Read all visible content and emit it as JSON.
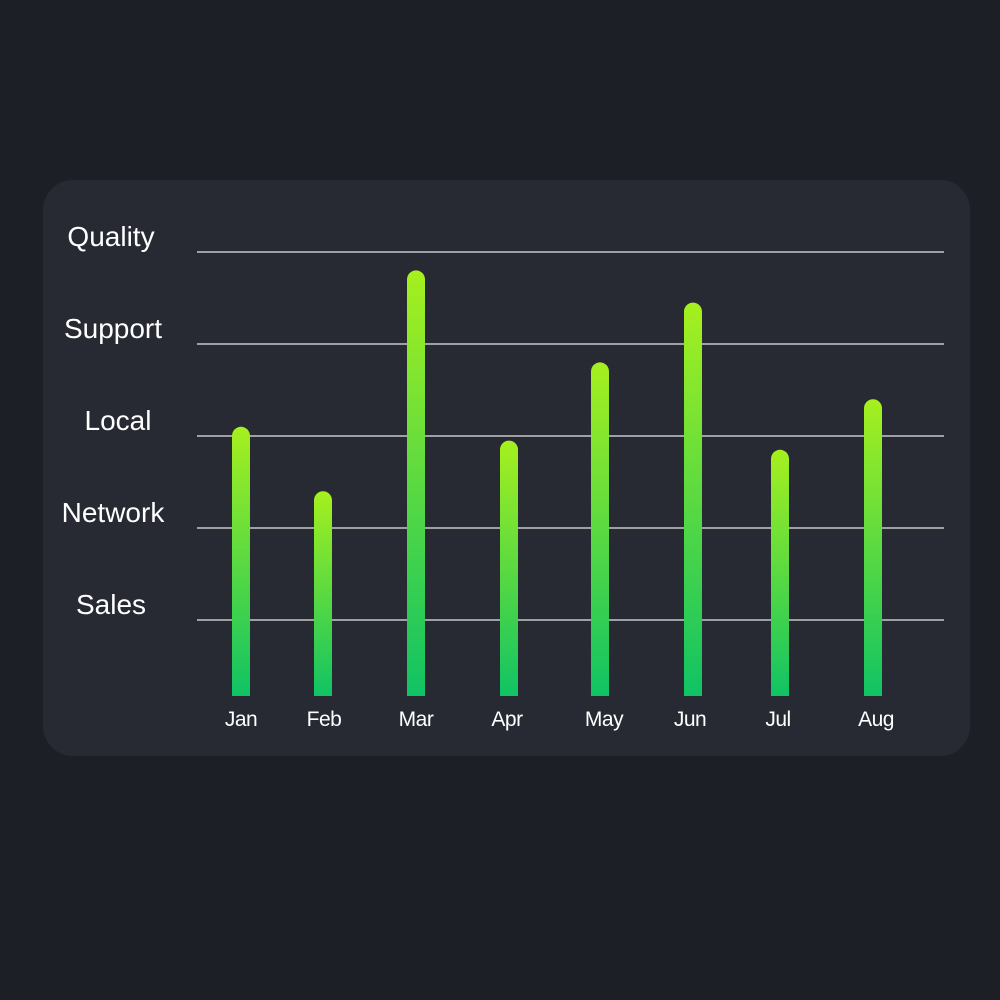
{
  "chart_data": {
    "type": "bar",
    "categories": [
      "Jan",
      "Feb",
      "Mar",
      "Apr",
      "May",
      "Jun",
      "Jul",
      "Aug"
    ],
    "values": [
      3.1,
      2.4,
      4.8,
      2.95,
      3.8,
      4.45,
      2.85,
      3.4
    ],
    "y_categories": [
      "Sales",
      "Network",
      "Local",
      "Support",
      "Quality"
    ],
    "ylim": [
      0,
      5
    ],
    "grid": true,
    "colors": {
      "bar_top": "#a6f01e",
      "bar_bottom": "#10c364",
      "background": "#1d1f26",
      "panel": "#272a33"
    }
  }
}
